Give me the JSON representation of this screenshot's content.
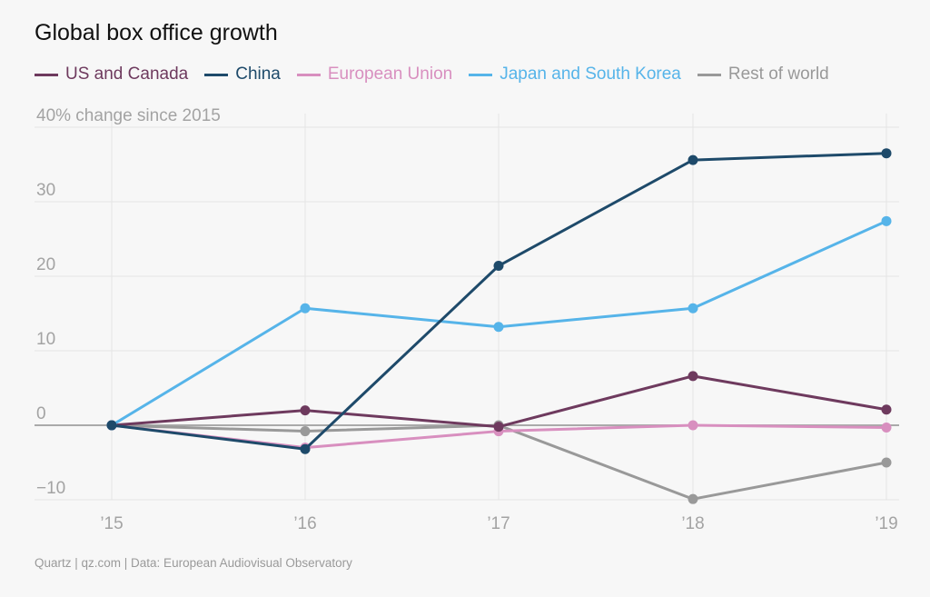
{
  "title": "Global box office growth",
  "source": "Quartz | qz.com | Data: European Audiovisual Observatory",
  "chart_data": {
    "type": "line",
    "title": "Global box office growth",
    "ylabel": "% change since 2015",
    "x": [
      "’15",
      "’16",
      "’17",
      "’18",
      "’19"
    ],
    "ylim": [
      -10,
      40
    ],
    "yticks": [
      -10,
      0,
      10,
      20,
      30,
      40
    ],
    "ytick_labels": [
      "−10",
      "0",
      "10",
      "20",
      "30",
      "40% change since 2015"
    ],
    "grid": true,
    "legend": "top",
    "series": [
      {
        "name": "US and Canada",
        "color": "#6e3a5e",
        "values": [
          0,
          2.0,
          -0.2,
          6.6,
          2.1
        ]
      },
      {
        "name": "China",
        "color": "#1e4a6a",
        "values": [
          0,
          -3.2,
          21.4,
          35.6,
          36.5
        ]
      },
      {
        "name": "European Union",
        "color": "#d88fbf",
        "values": [
          0,
          -3.0,
          -0.8,
          0,
          -0.3
        ]
      },
      {
        "name": "Japan and South Korea",
        "color": "#56b4e9",
        "values": [
          0,
          15.7,
          13.2,
          15.7,
          27.4
        ]
      },
      {
        "name": "Rest of world",
        "color": "#999999",
        "values": [
          0,
          -0.8,
          0,
          -9.9,
          -5.0
        ]
      }
    ]
  }
}
